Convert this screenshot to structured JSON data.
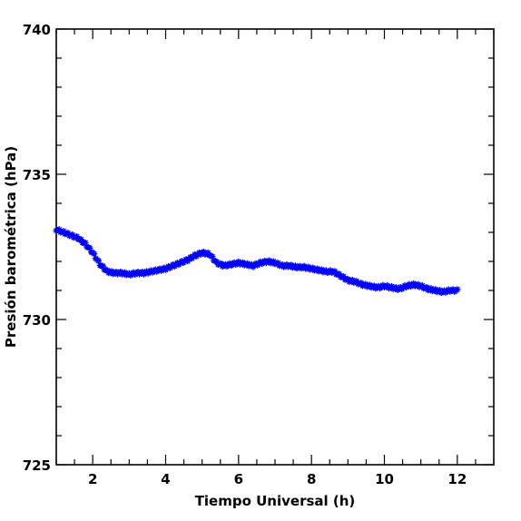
{
  "chart_data": {
    "type": "scatter",
    "title": "",
    "xlabel": "Tiempo Universal (h)",
    "ylabel": "Presión barométrica (hPa)",
    "xlim": [
      1,
      13
    ],
    "ylim": [
      725,
      740
    ],
    "x_ticks": [
      2,
      4,
      6,
      8,
      10,
      12
    ],
    "x_tick_labels": [
      "2",
      "4",
      "6",
      "8",
      "10",
      "12"
    ],
    "y_ticks": [
      725,
      730,
      735,
      740
    ],
    "y_tick_labels": [
      "725",
      "730",
      "735",
      "740"
    ],
    "x_minor_step": 0.5,
    "y_minor_step": 1,
    "grid": false,
    "marker": "asterisk",
    "color": "#0000ff",
    "x": [
      1.0,
      1.2,
      1.4,
      1.6,
      1.8,
      2.0,
      2.2,
      2.4,
      2.6,
      2.8,
      3.0,
      3.2,
      3.4,
      3.6,
      3.8,
      4.0,
      4.2,
      4.4,
      4.6,
      4.8,
      5.0,
      5.2,
      5.4,
      5.6,
      5.8,
      6.0,
      6.2,
      6.4,
      6.6,
      6.8,
      7.0,
      7.2,
      7.4,
      7.6,
      7.8,
      8.0,
      8.2,
      8.4,
      8.6,
      8.8,
      9.0,
      9.2,
      9.4,
      9.6,
      9.8,
      10.0,
      10.2,
      10.4,
      10.6,
      10.8,
      11.0,
      11.2,
      11.4,
      11.6,
      11.8,
      12.0
    ],
    "y": [
      733.1,
      733.0,
      732.9,
      732.8,
      732.6,
      732.3,
      731.9,
      731.65,
      731.6,
      731.6,
      731.55,
      731.6,
      731.6,
      731.65,
      731.7,
      731.75,
      731.85,
      731.95,
      732.05,
      732.2,
      732.3,
      732.25,
      731.95,
      731.85,
      731.9,
      731.95,
      731.9,
      731.85,
      731.95,
      732.0,
      731.95,
      731.85,
      731.85,
      731.8,
      731.8,
      731.75,
      731.7,
      731.65,
      731.65,
      731.5,
      731.35,
      731.3,
      731.2,
      731.15,
      731.1,
      731.15,
      731.1,
      731.05,
      731.15,
      731.2,
      731.15,
      731.05,
      731.0,
      730.95,
      731.0,
      731.0
    ]
  }
}
